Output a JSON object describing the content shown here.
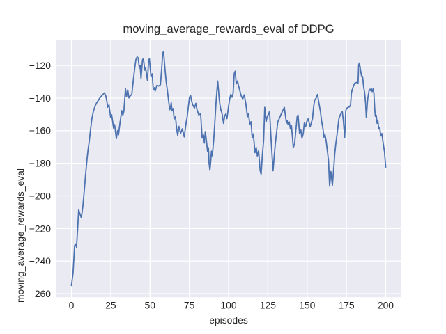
{
  "chart_data": {
    "type": "line",
    "title": "moving_average_rewards_eval of DDPG",
    "xlabel": "episodes",
    "ylabel": "moving_average_rewards_eval",
    "xlim": [
      -10,
      210
    ],
    "ylim": [
      -262.2,
      -104.4
    ],
    "xticks": [
      0,
      25,
      50,
      75,
      100,
      125,
      150,
      175,
      200
    ],
    "yticks": [
      -260,
      -240,
      -220,
      -200,
      -180,
      -160,
      -140,
      -120
    ],
    "grid": true,
    "legend_position": "none",
    "style": {
      "figure_bg": "#ffffff",
      "axes_bg": "#eaeaf2",
      "grid_color": "#ffffff",
      "line_color": "#4c72b0",
      "text_color": "#262626"
    },
    "series": [
      {
        "name": "moving_average_rewards_eval",
        "points": [
          [
            0,
            -255
          ],
          [
            1,
            -247.5
          ],
          [
            2,
            -230.5
          ],
          [
            2.7,
            -229.5
          ],
          [
            3.2,
            -231.5
          ],
          [
            4,
            -219
          ],
          [
            4.6,
            -208.5
          ],
          [
            5.4,
            -211
          ],
          [
            6.3,
            -213.5
          ],
          [
            7.3,
            -206
          ],
          [
            8.1,
            -197.5
          ],
          [
            9,
            -187
          ],
          [
            10,
            -176.5
          ],
          [
            10.7,
            -170.5
          ],
          [
            11.2,
            -167.5
          ],
          [
            12,
            -160.5
          ],
          [
            13,
            -152.5
          ],
          [
            14,
            -148
          ],
          [
            15,
            -145
          ],
          [
            16,
            -143
          ],
          [
            17,
            -141.5
          ],
          [
            18,
            -140
          ],
          [
            19,
            -138.8
          ],
          [
            20,
            -137.8
          ],
          [
            21,
            -136.8
          ],
          [
            21.8,
            -138.5
          ],
          [
            22.4,
            -141
          ],
          [
            23.1,
            -145.6
          ],
          [
            23.9,
            -144.2
          ],
          [
            25,
            -152
          ],
          [
            25.6,
            -150.3
          ],
          [
            26.8,
            -158.4
          ],
          [
            27.5,
            -156.3
          ],
          [
            28.6,
            -164.8
          ],
          [
            29.3,
            -160
          ],
          [
            29.9,
            -162.5
          ],
          [
            30.7,
            -156.5
          ],
          [
            31.4,
            -151.9
          ],
          [
            32,
            -147.7
          ],
          [
            32.7,
            -150.5
          ],
          [
            33.4,
            -148
          ],
          [
            34.4,
            -134.3
          ],
          [
            35,
            -139.2
          ],
          [
            35.8,
            -135
          ],
          [
            36.6,
            -139.9
          ],
          [
            37.5,
            -138.5
          ],
          [
            38.4,
            -137.8
          ],
          [
            39.6,
            -127.2
          ],
          [
            40.3,
            -121.5
          ],
          [
            41,
            -116.5
          ],
          [
            41.8,
            -114.7
          ],
          [
            42.5,
            -115.5
          ],
          [
            43.2,
            -121.5
          ],
          [
            43.7,
            -120.1
          ],
          [
            44.3,
            -127.9
          ],
          [
            45.2,
            -116.5
          ],
          [
            45.8,
            -115.8
          ],
          [
            46.7,
            -122.9
          ],
          [
            47.2,
            -121.5
          ],
          [
            48.4,
            -129.3
          ],
          [
            49.1,
            -117.2
          ],
          [
            49.6,
            -115.8
          ],
          [
            50.6,
            -126.5
          ],
          [
            51.4,
            -125.1
          ],
          [
            52.1,
            -135
          ],
          [
            52.9,
            -133.6
          ],
          [
            53.3,
            -135.7
          ],
          [
            54.4,
            -132.1
          ],
          [
            55.5,
            -132.6
          ],
          [
            56.6,
            -131.8
          ],
          [
            57.4,
            -122.2
          ],
          [
            58.1,
            -112.3
          ],
          [
            58.6,
            -111.6
          ],
          [
            59.6,
            -122.9
          ],
          [
            60.3,
            -130
          ],
          [
            61.1,
            -135.7
          ],
          [
            61.8,
            -141.4
          ],
          [
            62.5,
            -147.1
          ],
          [
            63,
            -146.4
          ],
          [
            63.5,
            -142.8
          ],
          [
            64,
            -147.8
          ],
          [
            64.7,
            -146.4
          ],
          [
            65.4,
            -152.8
          ],
          [
            66.2,
            -151.4
          ],
          [
            66.9,
            -158.5
          ],
          [
            67.6,
            -162.8
          ],
          [
            68.4,
            -157.4
          ],
          [
            69.5,
            -161.6
          ],
          [
            70.6,
            -158.8
          ],
          [
            71.8,
            -163.8
          ],
          [
            73,
            -155
          ],
          [
            73.6,
            -151.7
          ],
          [
            75.1,
            -139.6
          ],
          [
            75.8,
            -138.2
          ],
          [
            76.5,
            -141.8
          ],
          [
            77.3,
            -144.5
          ],
          [
            78.3,
            -146
          ],
          [
            79.2,
            -143.2
          ],
          [
            79.8,
            -146.8
          ],
          [
            81,
            -150.3
          ],
          [
            82.2,
            -149.6
          ],
          [
            83.2,
            -164.5
          ],
          [
            84,
            -162.6
          ],
          [
            84.6,
            -167.6
          ],
          [
            85.2,
            -160.5
          ],
          [
            86,
            -166.9
          ],
          [
            86.6,
            -172.6
          ],
          [
            87.2,
            -170.4
          ],
          [
            87.6,
            -179.7
          ],
          [
            88.1,
            -184.3
          ],
          [
            88.7,
            -178.2
          ],
          [
            89.1,
            -172.6
          ],
          [
            89.6,
            -175.4
          ],
          [
            90.5,
            -166
          ],
          [
            91.3,
            -154.1
          ],
          [
            92.1,
            -141.3
          ],
          [
            93.1,
            -129.5
          ],
          [
            94,
            -140
          ],
          [
            94.5,
            -144.1
          ],
          [
            95.2,
            -147.7
          ],
          [
            95.8,
            -149.1
          ],
          [
            96.8,
            -155.5
          ],
          [
            97.5,
            -151
          ],
          [
            98.2,
            -149.8
          ],
          [
            99,
            -152.6
          ],
          [
            100,
            -145
          ],
          [
            100.7,
            -140.5
          ],
          [
            101.4,
            -137.7
          ],
          [
            102.2,
            -139.5
          ],
          [
            102.9,
            -137
          ],
          [
            103.6,
            -125
          ],
          [
            104.2,
            -123.5
          ],
          [
            104.9,
            -131.3
          ],
          [
            105.7,
            -129.5
          ],
          [
            106.3,
            -132.3
          ],
          [
            107.2,
            -135.5
          ],
          [
            108,
            -138.5
          ],
          [
            109,
            -140.5
          ],
          [
            110,
            -138
          ],
          [
            111,
            -143.5
          ],
          [
            112,
            -151.5
          ],
          [
            112.7,
            -149.5
          ],
          [
            113.5,
            -156
          ],
          [
            114.3,
            -154.5
          ],
          [
            115.1,
            -164.5
          ],
          [
            115.8,
            -162
          ],
          [
            116.8,
            -173.5
          ],
          [
            117.6,
            -170.3
          ],
          [
            118.3,
            -175.5
          ],
          [
            119.1,
            -172.4
          ],
          [
            120.1,
            -184.5
          ],
          [
            120.7,
            -186.7
          ],
          [
            121.5,
            -175
          ],
          [
            122.3,
            -166
          ],
          [
            123,
            -145.7
          ],
          [
            123.9,
            -154.6
          ],
          [
            124.6,
            -151.1
          ],
          [
            125.4,
            -150
          ],
          [
            126.1,
            -148.2
          ],
          [
            127.1,
            -166
          ],
          [
            128.3,
            -184.6
          ],
          [
            129,
            -176
          ],
          [
            129.8,
            -167.4
          ],
          [
            131.3,
            -154.6
          ],
          [
            132.3,
            -152.5
          ],
          [
            133.4,
            -150
          ],
          [
            134.4,
            -147.8
          ],
          [
            135.5,
            -145.7
          ],
          [
            136.8,
            -155.3
          ],
          [
            137.3,
            -153.8
          ],
          [
            137.8,
            -156
          ],
          [
            138.6,
            -154.6
          ],
          [
            139.4,
            -159
          ],
          [
            140,
            -156.8
          ],
          [
            141.2,
            -170.3
          ],
          [
            142,
            -168.2
          ],
          [
            142.8,
            -160
          ],
          [
            143.7,
            -151.1
          ],
          [
            144.2,
            -150.4
          ],
          [
            145.2,
            -161.8
          ],
          [
            146,
            -159.6
          ],
          [
            146.7,
            -164.6
          ],
          [
            147.5,
            -161.9
          ],
          [
            148.2,
            -155.3
          ],
          [
            149,
            -157.5
          ],
          [
            149.7,
            -154.6
          ],
          [
            150.7,
            -152.7
          ],
          [
            151.9,
            -157.6
          ],
          [
            152.7,
            -155
          ],
          [
            153.4,
            -152.7
          ],
          [
            154.1,
            -145.6
          ],
          [
            154.8,
            -141.3
          ],
          [
            155.7,
            -140
          ],
          [
            156.6,
            -137.8
          ],
          [
            157.5,
            -143
          ],
          [
            158.5,
            -148.4
          ],
          [
            159.2,
            -154.1
          ],
          [
            160,
            -158.3
          ],
          [
            160.7,
            -164
          ],
          [
            161.4,
            -162.5
          ],
          [
            162.2,
            -166.8
          ],
          [
            162.9,
            -172.5
          ],
          [
            163.6,
            -178.2
          ],
          [
            164.3,
            -194
          ],
          [
            165.1,
            -185.1
          ],
          [
            166.1,
            -193.5
          ],
          [
            167,
            -182
          ],
          [
            167.6,
            -174
          ],
          [
            168.2,
            -168.4
          ],
          [
            169,
            -162.5
          ],
          [
            170.2,
            -152.7
          ],
          [
            171,
            -150.5
          ],
          [
            171.7,
            -149.1
          ],
          [
            172.4,
            -148.4
          ],
          [
            173.1,
            -154.1
          ],
          [
            173.9,
            -164.1
          ],
          [
            174.6,
            -147.7
          ],
          [
            175.1,
            -146.3
          ],
          [
            176,
            -145.7
          ],
          [
            177,
            -145.3
          ],
          [
            177.6,
            -144.2
          ],
          [
            178.2,
            -136.8
          ],
          [
            178.5,
            -135.6
          ],
          [
            179.2,
            -133.4
          ],
          [
            180,
            -131.2
          ],
          [
            180.6,
            -130.6
          ],
          [
            181.6,
            -130.4
          ],
          [
            182.4,
            -130.8
          ],
          [
            182.8,
            -119.5
          ],
          [
            183.3,
            -118.5
          ],
          [
            184,
            -123
          ],
          [
            184.6,
            -126.3
          ],
          [
            185.3,
            -126.8
          ],
          [
            186,
            -133.4
          ],
          [
            186.6,
            -136.5
          ],
          [
            187.2,
            -143
          ],
          [
            187.7,
            -151.9
          ],
          [
            188.5,
            -141
          ],
          [
            189,
            -137.7
          ],
          [
            189.6,
            -134.6
          ],
          [
            190.3,
            -135.3
          ],
          [
            190.8,
            -133.9
          ],
          [
            191.4,
            -136
          ],
          [
            192,
            -134.4
          ],
          [
            192.5,
            -136.8
          ],
          [
            193,
            -146.3
          ],
          [
            193.4,
            -151.2
          ],
          [
            194,
            -150.5
          ],
          [
            194.5,
            -155.4
          ],
          [
            195,
            -153.9
          ],
          [
            195.6,
            -158.9
          ],
          [
            196.2,
            -158.2
          ],
          [
            196.9,
            -163.2
          ],
          [
            197.6,
            -161.8
          ],
          [
            198.4,
            -167.5
          ],
          [
            199.2,
            -172.8
          ],
          [
            200,
            -182.3
          ]
        ]
      }
    ]
  }
}
